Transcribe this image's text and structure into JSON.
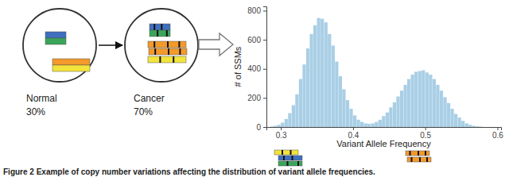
{
  "chart_data": {
    "type": "histogram",
    "x_label": "Variant Allele Frequency",
    "y_label": "# of SSMs",
    "bins": [
      0.285,
      0.29,
      0.295,
      0.3,
      0.305,
      0.31,
      0.315,
      0.32,
      0.325,
      0.33,
      0.335,
      0.34,
      0.345,
      0.35,
      0.355,
      0.36,
      0.365,
      0.37,
      0.375,
      0.38,
      0.385,
      0.39,
      0.395,
      0.4,
      0.405,
      0.41,
      0.415,
      0.42,
      0.425,
      0.43,
      0.435,
      0.44,
      0.445,
      0.45,
      0.455,
      0.46,
      0.465,
      0.47,
      0.475,
      0.48,
      0.485,
      0.49,
      0.495,
      0.5,
      0.505,
      0.51,
      0.515,
      0.52,
      0.525,
      0.53,
      0.535,
      0.54,
      0.545,
      0.55,
      0.555,
      0.56,
      0.565,
      0.57,
      0.575,
      0.58
    ],
    "values": [
      3,
      8,
      15,
      30,
      55,
      95,
      150,
      225,
      330,
      430,
      540,
      640,
      700,
      750,
      745,
      720,
      640,
      560,
      450,
      350,
      260,
      185,
      125,
      80,
      50,
      35,
      25,
      22,
      25,
      35,
      50,
      75,
      100,
      135,
      170,
      210,
      250,
      290,
      330,
      360,
      380,
      385,
      390,
      375,
      360,
      330,
      290,
      250,
      205,
      165,
      125,
      90,
      65,
      42,
      25,
      15,
      8,
      4,
      2
    ],
    "color": "#a9cfe6",
    "xlim": [
      0.28,
      0.605
    ],
    "ylim": [
      0,
      830
    ],
    "xticks": [
      0.3,
      0.4,
      0.5,
      0.6
    ],
    "yticks": [
      0,
      200,
      400,
      600,
      800
    ],
    "grid": false
  },
  "diagram": {
    "normal": {
      "label": "Normal",
      "fraction": "30%"
    },
    "cancer": {
      "label": "Cancer",
      "fraction": "70%"
    }
  },
  "caption": "Figure 2 Example of copy number variations affecting the distribution of variant allele frequencies."
}
